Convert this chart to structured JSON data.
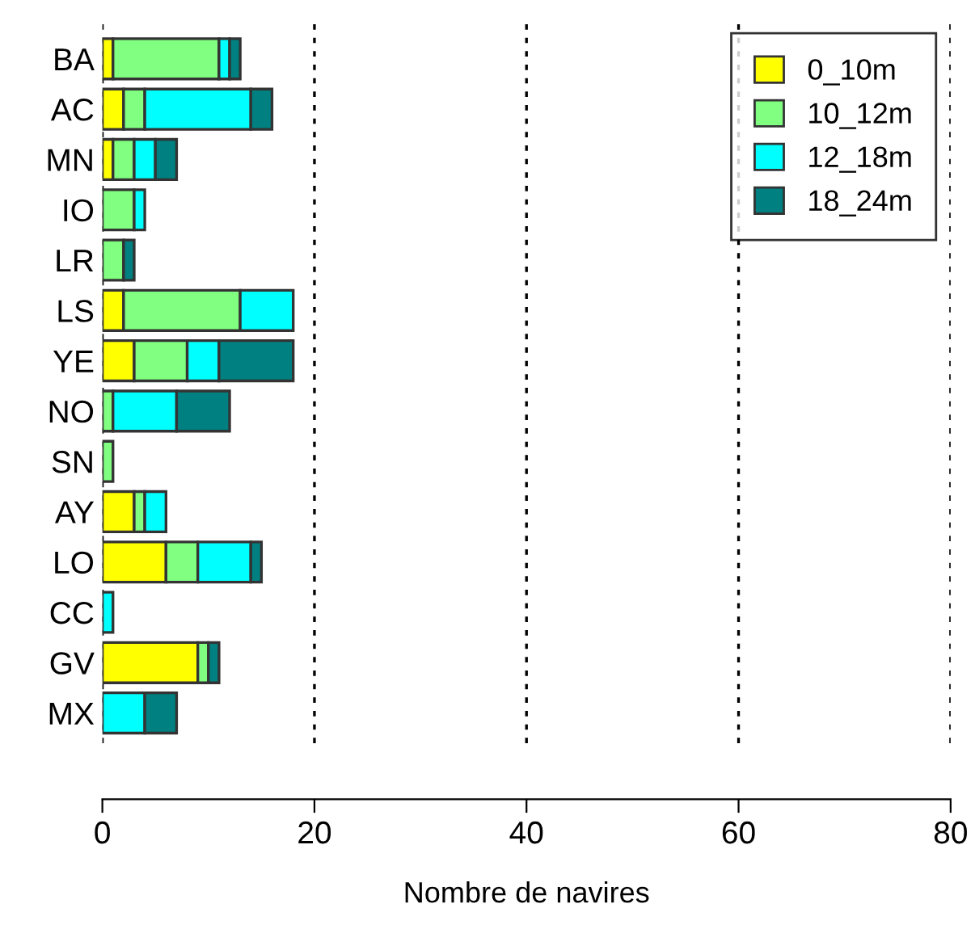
{
  "chart_data": {
    "type": "bar",
    "orientation": "horizontal",
    "stacked": true,
    "xlabel": "Nombre de navires",
    "categories": [
      "BA",
      "AC",
      "MN",
      "IO",
      "LR",
      "LS",
      "YE",
      "NO",
      "SN",
      "AY",
      "LO",
      "CC",
      "GV",
      "MX"
    ],
    "series": [
      {
        "name": "0_10m",
        "color": "#ffff00",
        "values": [
          1,
          2,
          1,
          0,
          0,
          2,
          3,
          0,
          0,
          3,
          6,
          0,
          9,
          0
        ]
      },
      {
        "name": "10_12m",
        "color": "#80ff80",
        "values": [
          10,
          2,
          2,
          3,
          2,
          11,
          5,
          1,
          1,
          1,
          3,
          0,
          1,
          0
        ]
      },
      {
        "name": "12_18m",
        "color": "#00ffff",
        "values": [
          1,
          10,
          2,
          1,
          0,
          5,
          3,
          6,
          0,
          2,
          5,
          1,
          0,
          4
        ]
      },
      {
        "name": "18_24m",
        "color": "#008080",
        "values": [
          1,
          2,
          2,
          0,
          1,
          0,
          7,
          5,
          0,
          0,
          1,
          0,
          1,
          3
        ]
      }
    ],
    "xlim": [
      0,
      80
    ],
    "xticks": [
      0,
      20,
      40,
      60,
      80
    ],
    "grid": "x",
    "legend": "top right"
  }
}
